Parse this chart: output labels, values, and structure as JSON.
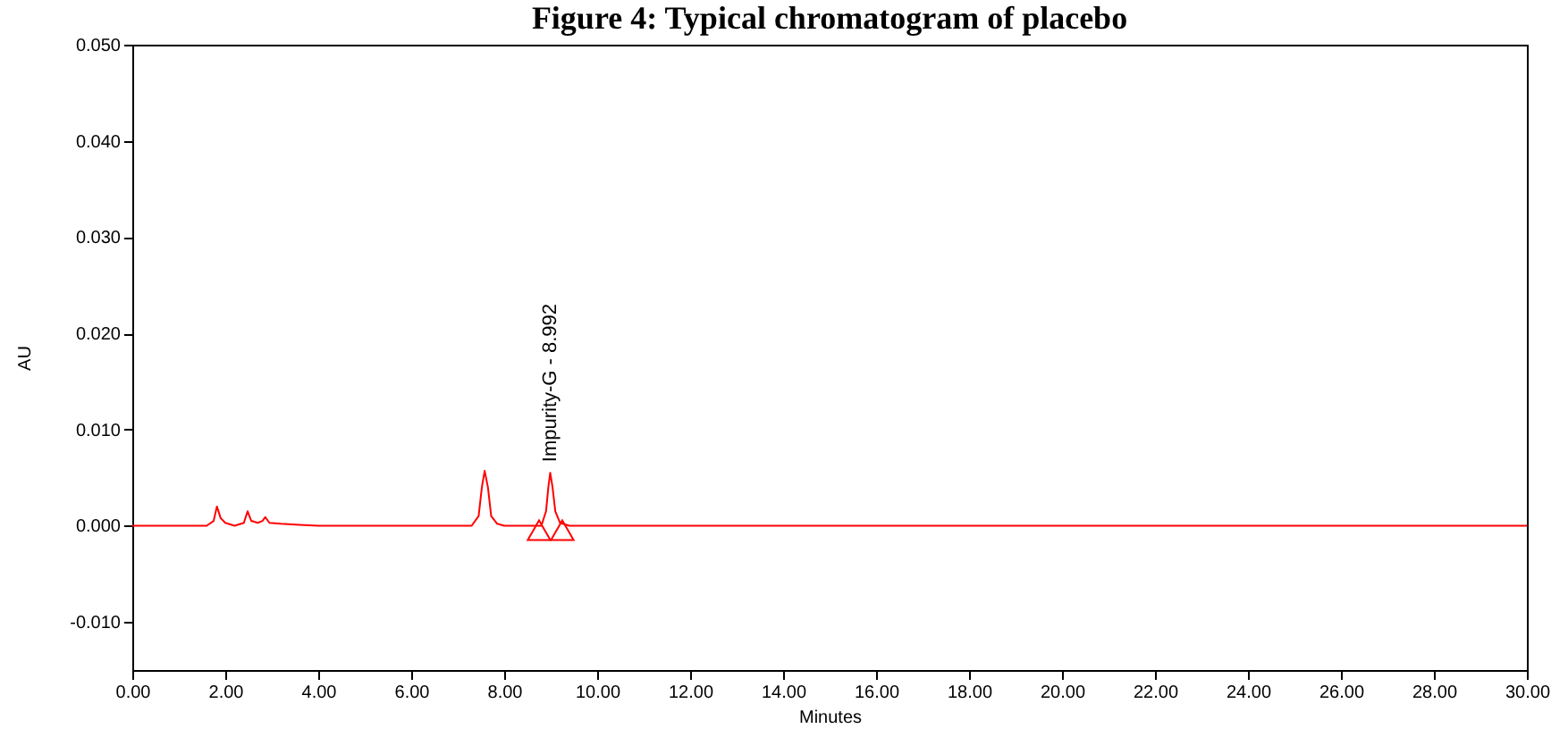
{
  "chart_data": {
    "type": "line",
    "title": "Figure 4: Typical chromatogram of placebo",
    "xlabel": "Minutes",
    "ylabel": "AU",
    "xlim": [
      0,
      30
    ],
    "ylim": [
      -0.015,
      0.05
    ],
    "xticks": [
      {
        "value": 0,
        "label": "0.00"
      },
      {
        "value": 2,
        "label": "2.00"
      },
      {
        "value": 4,
        "label": "4.00"
      },
      {
        "value": 6,
        "label": "6.00"
      },
      {
        "value": 8,
        "label": "8.00"
      },
      {
        "value": 10,
        "label": "10.00"
      },
      {
        "value": 12,
        "label": "12.00"
      },
      {
        "value": 14,
        "label": "14.00"
      },
      {
        "value": 16,
        "label": "16.00"
      },
      {
        "value": 18,
        "label": "18.00"
      },
      {
        "value": 20,
        "label": "20.00"
      },
      {
        "value": 22,
        "label": "22.00"
      },
      {
        "value": 24,
        "label": "24.00"
      },
      {
        "value": 26,
        "label": "26.00"
      },
      {
        "value": 28,
        "label": "28.00"
      },
      {
        "value": 30,
        "label": "30.00"
      }
    ],
    "yticks": [
      {
        "value": -0.01,
        "label": "-0.010"
      },
      {
        "value": 0,
        "label": "0.000"
      },
      {
        "value": 0.01,
        "label": "0.010"
      },
      {
        "value": 0.02,
        "label": "0.020"
      },
      {
        "value": 0.03,
        "label": "0.030"
      },
      {
        "value": 0.04,
        "label": "0.040"
      },
      {
        "value": 0.05,
        "label": "0.050"
      }
    ],
    "grid": false,
    "series": [
      {
        "color": "#ff0000",
        "marker": "none",
        "line_style": "solid",
        "x": [
          0,
          1.6,
          1.75,
          1.82,
          1.9,
          2.0,
          2.2,
          2.4,
          2.48,
          2.56,
          2.7,
          2.8,
          2.86,
          2.95,
          3.2,
          3.6,
          4.0,
          7.3,
          7.45,
          7.52,
          7.58,
          7.65,
          7.72,
          7.85,
          8.0,
          8.8,
          8.9,
          8.95,
          8.99,
          9.04,
          9.1,
          9.2,
          9.4,
          30
        ],
        "values": [
          0,
          0,
          0.0005,
          0.002,
          0.0008,
          0.0003,
          0,
          0.0003,
          0.0015,
          0.0005,
          0.0003,
          0.0005,
          0.0009,
          0.0003,
          0.0002,
          0.0001,
          0,
          0,
          0.001,
          0.004,
          0.0057,
          0.004,
          0.001,
          0.0002,
          0,
          0,
          0.0015,
          0.004,
          0.0055,
          0.004,
          0.0015,
          0.0003,
          0,
          0
        ]
      },
      {
        "type": "scatter",
        "color": "#ff0000",
        "marker": "triangle",
        "x": [
          8.75,
          9.25
        ],
        "values": [
          -0.0008,
          -0.0008
        ]
      }
    ],
    "annotations": [
      {
        "text": "Impurity-G - 8.992",
        "x": 8.992,
        "y": 0.0055
      }
    ]
  }
}
